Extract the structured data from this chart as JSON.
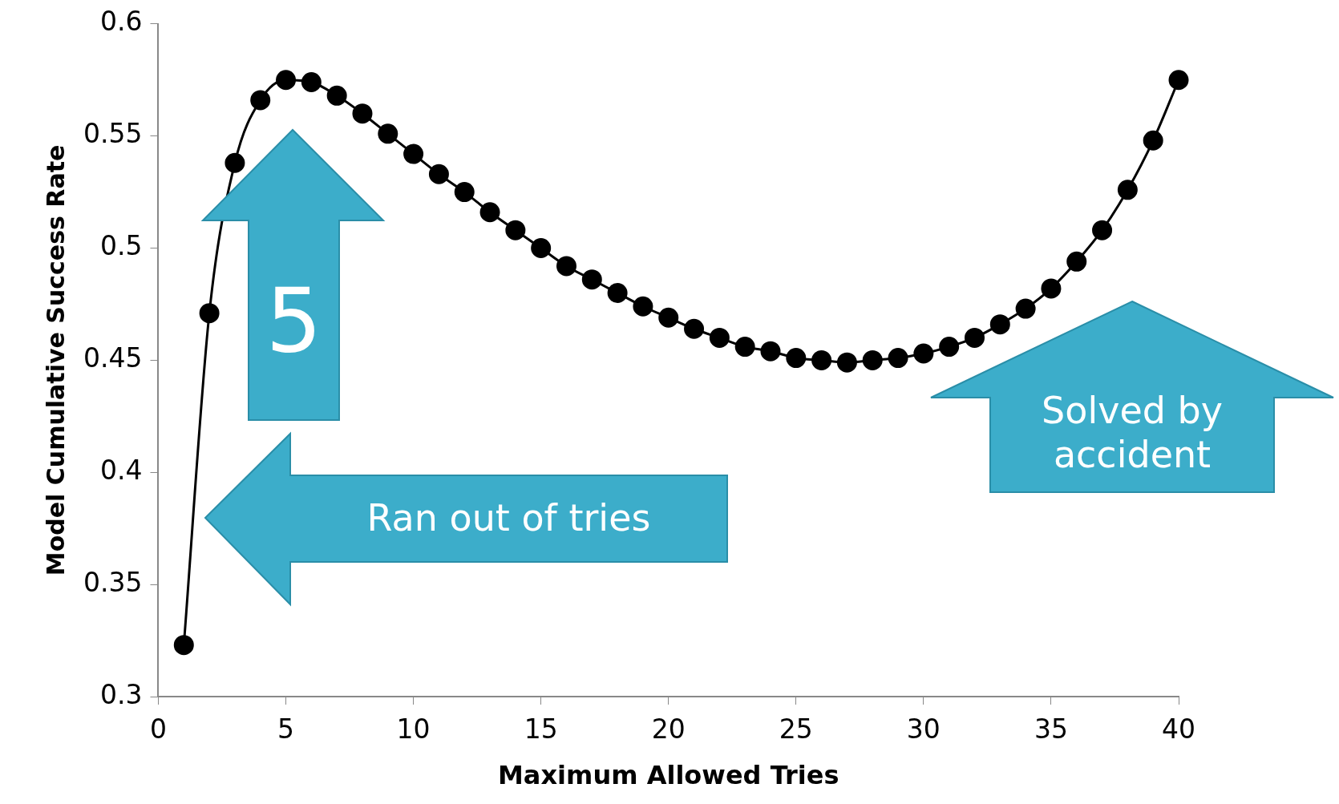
{
  "chart_data": {
    "type": "line",
    "xlabel": "Maximum Allowed Tries",
    "ylabel": "Model Cumulative Success Rate",
    "x": [
      1,
      2,
      3,
      4,
      5,
      6,
      7,
      8,
      9,
      10,
      11,
      12,
      13,
      14,
      15,
      16,
      17,
      18,
      19,
      20,
      21,
      22,
      23,
      24,
      25,
      26,
      27,
      28,
      29,
      30,
      31,
      32,
      33,
      34,
      35,
      36,
      37,
      38,
      39,
      40
    ],
    "series": [
      {
        "color": "#000000",
        "values": [
          0.323,
          0.471,
          0.538,
          0.566,
          0.575,
          0.574,
          0.568,
          0.56,
          0.551,
          0.542,
          0.533,
          0.525,
          0.516,
          0.508,
          0.5,
          0.492,
          0.486,
          0.48,
          0.474,
          0.469,
          0.464,
          0.46,
          0.456,
          0.454,
          0.451,
          0.45,
          0.449,
          0.45,
          0.451,
          0.453,
          0.456,
          0.46,
          0.466,
          0.473,
          0.482,
          0.494,
          0.508,
          0.526,
          0.548,
          0.575
        ]
      }
    ],
    "xlim": [
      0,
      40
    ],
    "xticks": [
      0,
      5,
      10,
      15,
      20,
      25,
      30,
      35,
      40
    ],
    "ylim": [
      0.3,
      0.6
    ],
    "yticks": [
      0.3,
      0.35,
      0.4,
      0.45,
      0.5,
      0.55,
      0.6
    ],
    "marker": "circle",
    "line_style": "solid",
    "grid": false,
    "legend": false,
    "annotations": [
      "5",
      "Ran out of tries",
      "Solved by accident"
    ]
  }
}
